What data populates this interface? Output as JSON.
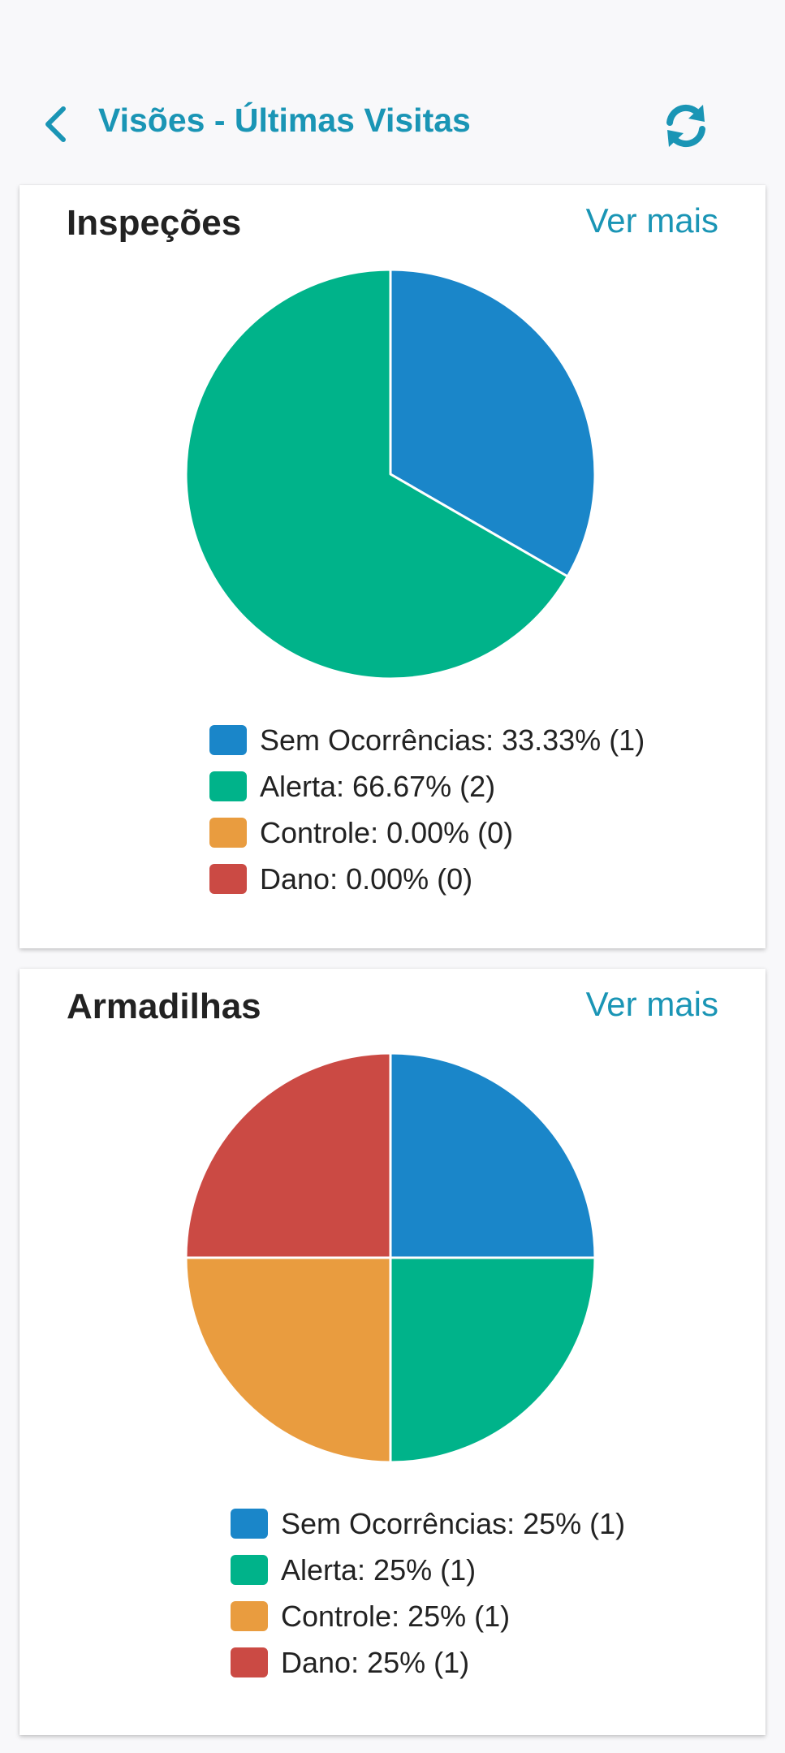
{
  "header": {
    "title": "Visões - Últimas Visitas",
    "back_icon": "chevron-left-icon",
    "refresh_icon": "refresh-icon",
    "accent_color": "#1a95b5"
  },
  "colors": {
    "sem_ocorrencias": "#1a86c9",
    "alerta": "#00b38a",
    "controle": "#e99c3f",
    "dano": "#cb4a44"
  },
  "cards": [
    {
      "title": "Inspeções",
      "see_more_label": "Ver mais",
      "legend": [
        {
          "text": "Sem Ocorrências: 33.33% (1)",
          "color": "#1a86c9"
        },
        {
          "text": "Alerta: 66.67% (2)",
          "color": "#00b38a"
        },
        {
          "text": "Controle: 0.00% (0)",
          "color": "#e99c3f"
        },
        {
          "text": "Dano: 0.00% (0)",
          "color": "#cb4a44"
        }
      ]
    },
    {
      "title": "Armadilhas",
      "see_more_label": "Ver mais",
      "legend": [
        {
          "text": "Sem Ocorrências: 25% (1)",
          "color": "#1a86c9"
        },
        {
          "text": "Alerta: 25% (1)",
          "color": "#00b38a"
        },
        {
          "text": "Controle: 25% (1)",
          "color": "#e99c3f"
        },
        {
          "text": "Dano: 25% (1)",
          "color": "#cb4a44"
        }
      ]
    }
  ],
  "chart_data": [
    {
      "type": "pie",
      "title": "Inspeções",
      "categories": [
        "Sem Ocorrências",
        "Alerta",
        "Controle",
        "Dano"
      ],
      "values": [
        1,
        2,
        0,
        0
      ],
      "percentages": [
        33.33,
        66.67,
        0.0,
        0.0
      ],
      "colors": [
        "#1a86c9",
        "#00b38a",
        "#e99c3f",
        "#cb4a44"
      ],
      "legend_position": "bottom"
    },
    {
      "type": "pie",
      "title": "Armadilhas",
      "categories": [
        "Sem Ocorrências",
        "Alerta",
        "Controle",
        "Dano"
      ],
      "values": [
        1,
        1,
        1,
        1
      ],
      "percentages": [
        25,
        25,
        25,
        25
      ],
      "colors": [
        "#1a86c9",
        "#00b38a",
        "#e99c3f",
        "#cb4a44"
      ],
      "legend_position": "bottom"
    }
  ]
}
